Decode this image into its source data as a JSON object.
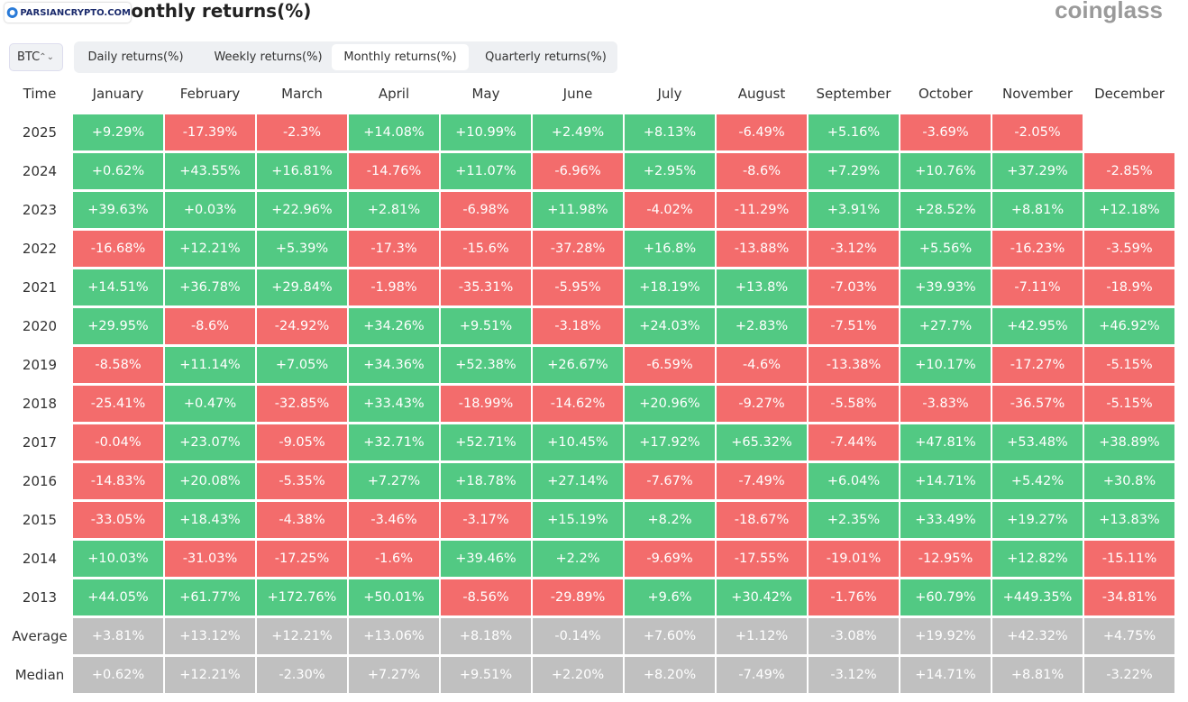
{
  "header": {
    "title": "Bitcoin Monthly returns(%)",
    "watermark": "PARSIANCRYPTO.COM",
    "logo": "coinglass"
  },
  "controls": {
    "asset": "BTC",
    "tabs": [
      "Daily returns(%)",
      "Weekly returns(%)",
      "Monthly returns(%)",
      "Quarterly returns(%)"
    ],
    "active_tab": 2
  },
  "table": {
    "header": [
      "Time",
      "January",
      "February",
      "March",
      "April",
      "May",
      "June",
      "July",
      "August",
      "September",
      "October",
      "November",
      "December"
    ],
    "rows": [
      [
        "2025",
        "+9.29%",
        "-17.39%",
        "-2.3%",
        "+14.08%",
        "+10.99%",
        "+2.49%",
        "+8.13%",
        "-6.49%",
        "+5.16%",
        "-3.69%",
        "-2.05%",
        null
      ],
      [
        "2024",
        "+0.62%",
        "+43.55%",
        "+16.81%",
        "-14.76%",
        "+11.07%",
        "-6.96%",
        "+2.95%",
        "-8.6%",
        "+7.29%",
        "+10.76%",
        "+37.29%",
        "-2.85%"
      ],
      [
        "2023",
        "+39.63%",
        "+0.03%",
        "+22.96%",
        "+2.81%",
        "-6.98%",
        "+11.98%",
        "-4.02%",
        "-11.29%",
        "+3.91%",
        "+28.52%",
        "+8.81%",
        "+12.18%"
      ],
      [
        "2022",
        "-16.68%",
        "+12.21%",
        "+5.39%",
        "-17.3%",
        "-15.6%",
        "-37.28%",
        "+16.8%",
        "-13.88%",
        "-3.12%",
        "+5.56%",
        "-16.23%",
        "-3.59%"
      ],
      [
        "2021",
        "+14.51%",
        "+36.78%",
        "+29.84%",
        "-1.98%",
        "-35.31%",
        "-5.95%",
        "+18.19%",
        "+13.8%",
        "-7.03%",
        "+39.93%",
        "-7.11%",
        "-18.9%"
      ],
      [
        "2020",
        "+29.95%",
        "-8.6%",
        "-24.92%",
        "+34.26%",
        "+9.51%",
        "-3.18%",
        "+24.03%",
        "+2.83%",
        "-7.51%",
        "+27.7%",
        "+42.95%",
        "+46.92%"
      ],
      [
        "2019",
        "-8.58%",
        "+11.14%",
        "+7.05%",
        "+34.36%",
        "+52.38%",
        "+26.67%",
        "-6.59%",
        "-4.6%",
        "-13.38%",
        "+10.17%",
        "-17.27%",
        "-5.15%"
      ],
      [
        "2018",
        "-25.41%",
        "+0.47%",
        "-32.85%",
        "+33.43%",
        "-18.99%",
        "-14.62%",
        "+20.96%",
        "-9.27%",
        "-5.58%",
        "-3.83%",
        "-36.57%",
        "-5.15%"
      ],
      [
        "2017",
        "-0.04%",
        "+23.07%",
        "-9.05%",
        "+32.71%",
        "+52.71%",
        "+10.45%",
        "+17.92%",
        "+65.32%",
        "-7.44%",
        "+47.81%",
        "+53.48%",
        "+38.89%"
      ],
      [
        "2016",
        "-14.83%",
        "+20.08%",
        "-5.35%",
        "+7.27%",
        "+18.78%",
        "+27.14%",
        "-7.67%",
        "-7.49%",
        "+6.04%",
        "+14.71%",
        "+5.42%",
        "+30.8%"
      ],
      [
        "2015",
        "-33.05%",
        "+18.43%",
        "-4.38%",
        "-3.46%",
        "-3.17%",
        "+15.19%",
        "+8.2%",
        "-18.67%",
        "+2.35%",
        "+33.49%",
        "+19.27%",
        "+13.83%"
      ],
      [
        "2014",
        "+10.03%",
        "-31.03%",
        "-17.25%",
        "-1.6%",
        "+39.46%",
        "+2.2%",
        "-9.69%",
        "-17.55%",
        "-19.01%",
        "-12.95%",
        "+12.82%",
        "-15.11%"
      ],
      [
        "2013",
        "+44.05%",
        "+61.77%",
        "+172.76%",
        "+50.01%",
        "-8.56%",
        "-29.89%",
        "+9.6%",
        "+30.42%",
        "-1.76%",
        "+60.79%",
        "+449.35%",
        "-34.81%"
      ],
      [
        "Average",
        "+3.81%",
        "+13.12%",
        "+12.21%",
        "+13.06%",
        "+8.18%",
        "-0.14%",
        "+7.60%",
        "+1.12%",
        "-3.08%",
        "+19.92%",
        "+42.32%",
        "+4.75%"
      ],
      [
        "Median",
        "+0.62%",
        "+12.21%",
        "-2.30%",
        "+7.27%",
        "+9.51%",
        "+2.20%",
        "+8.20%",
        "-7.49%",
        "-3.12%",
        "+14.71%",
        "+8.81%",
        "-3.22%"
      ]
    ],
    "summary_rows": [
      13,
      14
    ]
  }
}
